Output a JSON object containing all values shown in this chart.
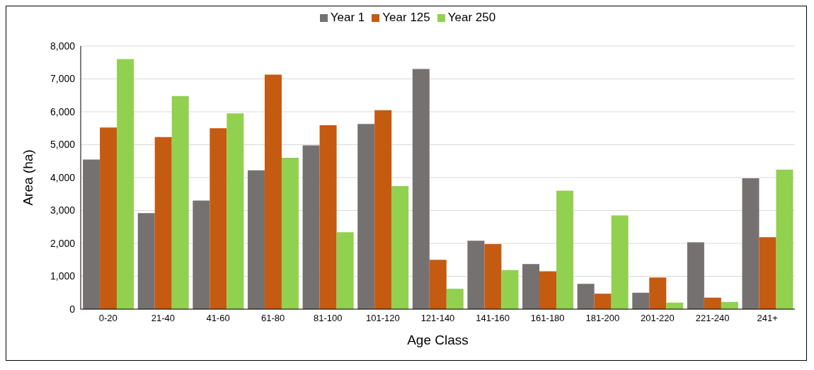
{
  "chart_data": {
    "type": "bar",
    "xlabel": "Age Class",
    "ylabel": "Area (ha)",
    "categories": [
      "0-20",
      "21-40",
      "41-60",
      "61-80",
      "81-100",
      "101-120",
      "121-140",
      "141-160",
      "161-180",
      "181-200",
      "201-220",
      "221-240",
      "241+"
    ],
    "series": [
      {
        "name": "Year 1",
        "color": "#767171",
        "values": [
          4550,
          2920,
          3300,
          4220,
          4980,
          5630,
          7300,
          2080,
          1370,
          770,
          500,
          2030,
          3980
        ]
      },
      {
        "name": "Year 125",
        "color": "#c55a11",
        "values": [
          5520,
          5230,
          5500,
          7130,
          5590,
          6050,
          1500,
          1980,
          1150,
          470,
          960,
          350,
          2190
        ]
      },
      {
        "name": "Year 250",
        "color": "#92d050",
        "values": [
          7600,
          6480,
          5950,
          4600,
          2340,
          3740,
          620,
          1190,
          3600,
          2850,
          200,
          220,
          4240
        ]
      }
    ],
    "ylim": [
      0,
      8000
    ],
    "yticks": [
      {
        "value": 0,
        "label": "0"
      },
      {
        "value": 1000,
        "label": "1,000"
      },
      {
        "value": 2000,
        "label": "2,000"
      },
      {
        "value": 3000,
        "label": "3,000"
      },
      {
        "value": 4000,
        "label": "4,000"
      },
      {
        "value": 5000,
        "label": "5,000"
      },
      {
        "value": 6000,
        "label": "6,000"
      },
      {
        "value": 7000,
        "label": "7,000"
      },
      {
        "value": 8000,
        "label": "8,000"
      }
    ],
    "grid": "y",
    "legend": "top"
  }
}
